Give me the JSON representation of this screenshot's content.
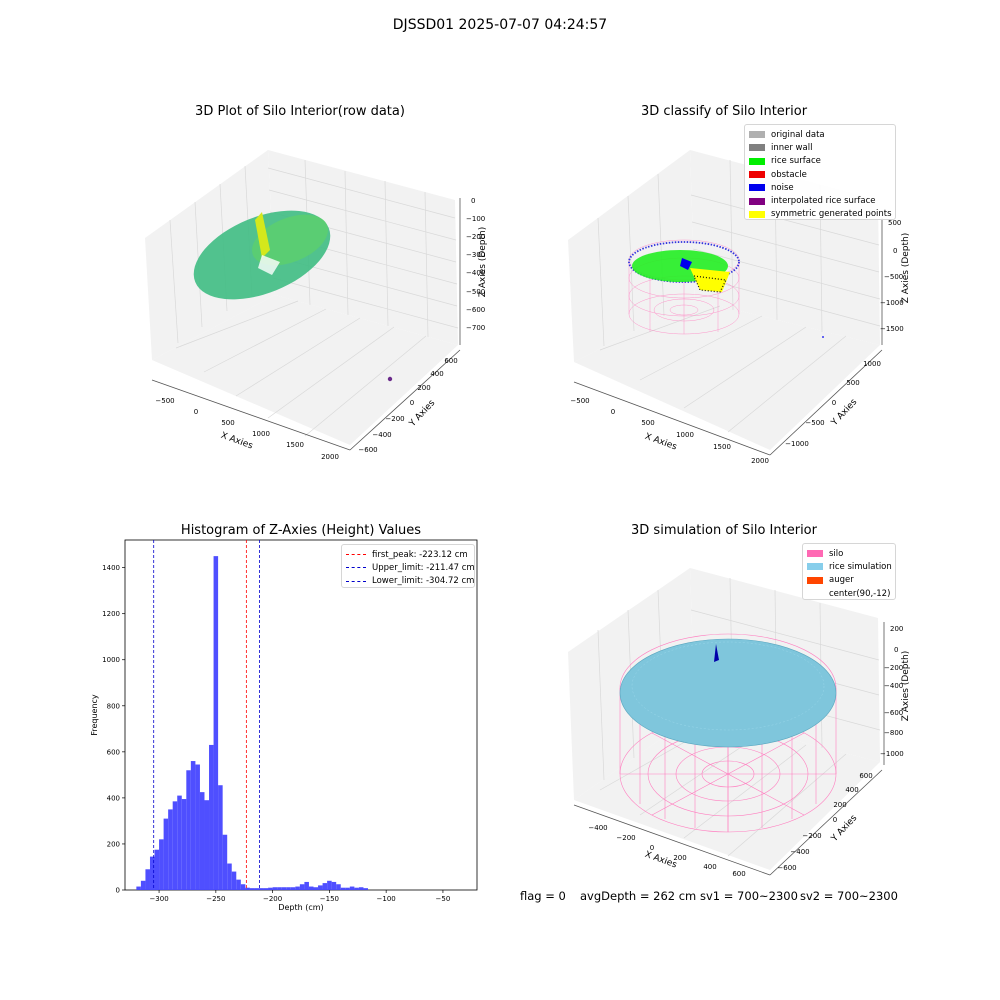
{
  "figure": {
    "suptitle": "DJSSD01 2025-07-07 04:24:57"
  },
  "panels": {
    "raw": {
      "title": "3D Plot of Silo Interior(row data)",
      "xlabel": "X Axies",
      "ylabel": "Y Axies",
      "zlabel": "Z Axies (Depth)",
      "x_ticks": [
        "−500",
        "0",
        "500",
        "1000",
        "1500",
        "2000"
      ],
      "y_ticks": [
        "−600",
        "−400",
        "−200",
        "0",
        "200",
        "400",
        "600"
      ],
      "z_ticks": [
        "0",
        "−100",
        "−200",
        "−300",
        "−400",
        "−500",
        "−600",
        "−700"
      ],
      "colors": {
        "point_low": "#3cb878",
        "point_high": "#c8e022",
        "outlier": "#6a2a8a"
      }
    },
    "classify": {
      "title": "3D classify of Silo Interior",
      "xlabel": "X Axies",
      "ylabel": "Y Axies",
      "zlabel": "Z Axies (Depth)",
      "x_ticks": [
        "−500",
        "0",
        "500",
        "1000",
        "1500",
        "2000"
      ],
      "y_ticks": [
        "−1000",
        "−500",
        "0",
        "500",
        "1000"
      ],
      "z_ticks": [
        "500",
        "0",
        "−500",
        "−1000",
        "−1500"
      ],
      "legend": [
        {
          "label": "original data",
          "color": "#b0b0b0"
        },
        {
          "label": "inner wall",
          "color": "#808080"
        },
        {
          "label": "rice surface",
          "color": "#00ee00"
        },
        {
          "label": "obstacle",
          "color": "#ee0000"
        },
        {
          "label": "noise",
          "color": "#0000ee"
        },
        {
          "label": "interpolated rice surface",
          "color": "#800080"
        },
        {
          "label": "symmetric generated points",
          "color": "#ffff00"
        }
      ]
    },
    "histogram": {
      "title": "Histogram of Z-Axies (Height) Values",
      "xlabel": "Depth (cm)",
      "ylabel": "Frequency",
      "legend": [
        {
          "label": "first_peak: -223.12 cm",
          "color": "#ff0000"
        },
        {
          "label": "Upper_limit: -211.47 cm",
          "color": "#0000cc"
        },
        {
          "label": "Lower_limit: -304.72 cm",
          "color": "#0000cc"
        }
      ]
    },
    "simulation": {
      "title": "3D simulation of Silo Interior",
      "xlabel": "X Axies",
      "ylabel": "Y Axies",
      "zlabel": "Z Axies (Depth)",
      "x_ticks": [
        "−400",
        "−200",
        "0",
        "200",
        "400",
        "600"
      ],
      "y_ticks": [
        "−600",
        "−400",
        "−200",
        "0",
        "200",
        "400",
        "600"
      ],
      "z_ticks": [
        "200",
        "0",
        "−200",
        "−400",
        "−600",
        "−800",
        "−1000"
      ],
      "legend": [
        {
          "label": "silo",
          "color": "#ff69b4"
        },
        {
          "label": "rice simulation",
          "color": "#87ceeb"
        },
        {
          "label": "auger",
          "color": "#ff4500"
        },
        {
          "label": "center(90,-12)",
          "color": "#ffffff"
        }
      ]
    }
  },
  "stats": {
    "flag": "flag = 0",
    "avg_depth": "avgDepth = 262 cm",
    "sv1": "sv1 = 700~2300",
    "sv2": "sv2 = 700~2300"
  },
  "chart_data": [
    {
      "type": "scatter",
      "title": "3D Plot of Silo Interior(row data)",
      "xlabel": "X Axies",
      "ylabel": "Y Axies",
      "zlabel": "Z Axies (Depth)",
      "xlim": [
        -600,
        2000
      ],
      "ylim": [
        -700,
        700
      ],
      "zlim": [
        -750,
        0
      ],
      "points": [
        {
          "x": 0,
          "y": 0,
          "z": -210,
          "group": "rice surface"
        },
        {
          "x": 1750,
          "y": -200,
          "z": -650,
          "group": "outlier"
        }
      ]
    },
    {
      "type": "scatter",
      "title": "3D classify of Silo Interior",
      "xlabel": "X Axies",
      "ylabel": "Y Axies",
      "zlabel": "Z Axies (Depth)",
      "xlim": [
        -600,
        2000
      ],
      "ylim": [
        -1200,
        1200
      ],
      "zlim": [
        -1700,
        500
      ],
      "series": [
        {
          "name": "original data"
        },
        {
          "name": "inner wall"
        },
        {
          "name": "rice surface"
        },
        {
          "name": "obstacle"
        },
        {
          "name": "noise"
        },
        {
          "name": "interpolated rice surface"
        },
        {
          "name": "symmetric generated points"
        }
      ]
    },
    {
      "type": "bar",
      "title": "Histogram of Z-Axies (Height) Values",
      "xlabel": "Depth (cm)",
      "ylabel": "Frequency",
      "xlim": [
        -330,
        -20
      ],
      "ylim": [
        0,
        1520
      ],
      "x_ticks": [
        -300,
        -250,
        -200,
        -150,
        -100,
        -50
      ],
      "y_ticks": [
        0,
        200,
        400,
        600,
        800,
        1000,
        1200,
        1400
      ],
      "bin_width": 4,
      "bins": [
        [
          -320,
          15
        ],
        [
          -316,
          40
        ],
        [
          -312,
          90
        ],
        [
          -308,
          145
        ],
        [
          -304,
          175
        ],
        [
          -300,
          220
        ],
        [
          -296,
          310
        ],
        [
          -292,
          350
        ],
        [
          -288,
          385
        ],
        [
          -284,
          410
        ],
        [
          -280,
          395
        ],
        [
          -276,
          520
        ],
        [
          -272,
          560
        ],
        [
          -268,
          545
        ],
        [
          -264,
          425
        ],
        [
          -260,
          390
        ],
        [
          -256,
          630
        ],
        [
          -252,
          1450
        ],
        [
          -248,
          455
        ],
        [
          -244,
          240
        ],
        [
          -240,
          115
        ],
        [
          -236,
          80
        ],
        [
          -232,
          45
        ],
        [
          -228,
          25
        ],
        [
          -224,
          10
        ],
        [
          -220,
          8
        ],
        [
          -216,
          8
        ],
        [
          -212,
          8
        ],
        [
          -208,
          8
        ],
        [
          -204,
          10
        ],
        [
          -200,
          12
        ],
        [
          -196,
          12
        ],
        [
          -192,
          12
        ],
        [
          -188,
          12
        ],
        [
          -184,
          12
        ],
        [
          -180,
          15
        ],
        [
          -176,
          25
        ],
        [
          -172,
          35
        ],
        [
          -168,
          15
        ],
        [
          -164,
          12
        ],
        [
          -160,
          20
        ],
        [
          -156,
          30
        ],
        [
          -152,
          40
        ],
        [
          -148,
          35
        ],
        [
          -144,
          25
        ],
        [
          -140,
          10
        ],
        [
          -136,
          10
        ],
        [
          -132,
          15
        ],
        [
          -128,
          10
        ],
        [
          -124,
          12
        ],
        [
          -120,
          8
        ]
      ],
      "vlines": [
        {
          "name": "first_peak",
          "x": -223.12,
          "color": "#ff0000"
        },
        {
          "name": "Upper_limit",
          "x": -211.47,
          "color": "#0000cc"
        },
        {
          "name": "Lower_limit",
          "x": -304.72,
          "color": "#0000cc"
        }
      ],
      "bar_color": "#4646ff"
    },
    {
      "type": "scatter",
      "title": "3D simulation of Silo Interior",
      "xlabel": "X Axies",
      "ylabel": "Y Axies",
      "zlabel": "Z Axies (Depth)",
      "xlim": [
        -500,
        700
      ],
      "ylim": [
        -700,
        700
      ],
      "zlim": [
        -1100,
        300
      ],
      "series": [
        {
          "name": "silo"
        },
        {
          "name": "rice simulation"
        },
        {
          "name": "auger"
        },
        {
          "name": "center(90,-12)"
        }
      ]
    }
  ]
}
